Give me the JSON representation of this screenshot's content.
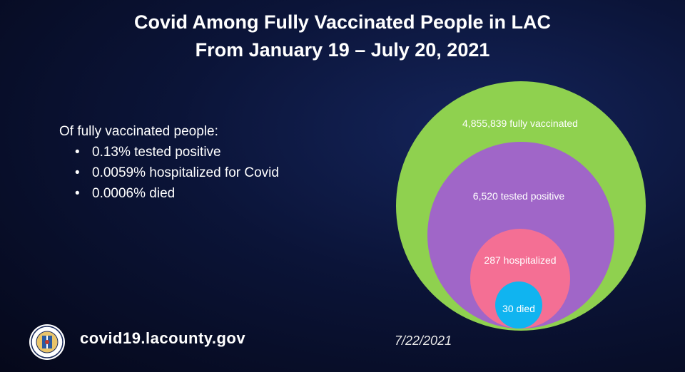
{
  "title": {
    "line1": "Covid Among Fully Vaccinated People in LAC",
    "line2": "From January 19 – July 20, 2021"
  },
  "summary": {
    "intro": "Of fully vaccinated people:",
    "bullets": [
      "0.13% tested positive",
      "0.0059% hospitalized for Covid",
      "0.0006% died"
    ]
  },
  "circles": [
    {
      "label": "4,855,839 fully vaccinated",
      "color": "#8fd14f"
    },
    {
      "label": "6,520 tested positive",
      "color": "#a066c8"
    },
    {
      "label": "287 hospitalized",
      "color": "#f46f94"
    },
    {
      "label": "30 died",
      "color": "#10b4f0"
    }
  ],
  "footer": {
    "url": "covid19.lacounty.gov",
    "date": "7/22/2021",
    "seal_text": "COUNTY OF LOS ANGELES · CALIFORNIA"
  },
  "colors": {
    "background": "#0b1438",
    "text": "#ffffff"
  }
}
